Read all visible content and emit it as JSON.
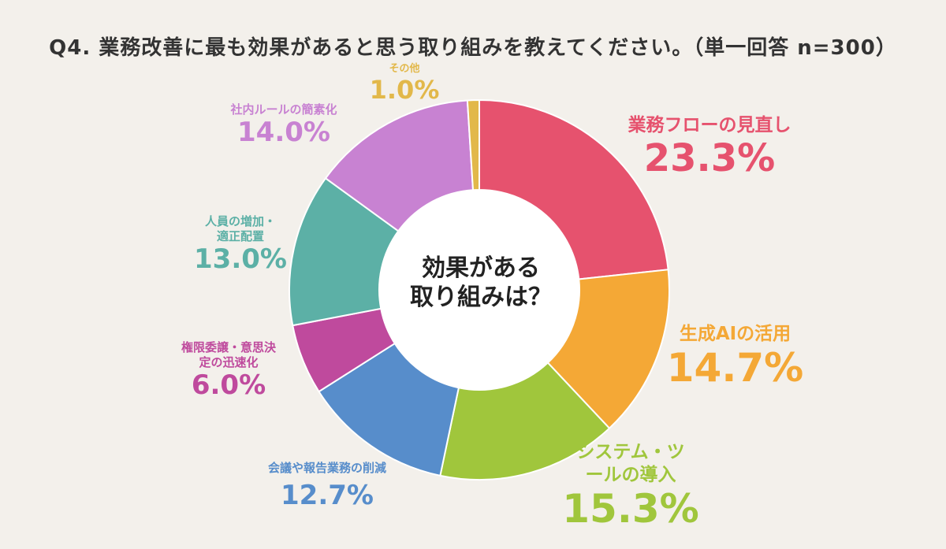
{
  "title": "Q4. 業務改善に最も効果があると思う取り組みを教えてください。（単一回答 n=300）",
  "center_label": [
    "効果がある",
    "取り組みは？"
  ],
  "chart_data": {
    "type": "donut",
    "unit": "%",
    "segments": [
      {
        "name": "業務フローの見直し",
        "value": 23.3,
        "label": "23.3%",
        "color": "#e6526e"
      },
      {
        "name": "生成AIの活用",
        "value": 14.7,
        "label": "14.7%",
        "color": "#f4a836"
      },
      {
        "name": "システム・ツールの導入",
        "value": 15.3,
        "label": "15.3%",
        "color": "#a0c63c"
      },
      {
        "name": "会議や報告業務の削減",
        "value": 12.7,
        "label": "12.7%",
        "color": "#578dcb"
      },
      {
        "name": "権限委譲・意思決定の迅速化",
        "value": 6.0,
        "label": "6.0%",
        "color": "#bf4a9d"
      },
      {
        "name": "人員の増加・適正配置",
        "value": 13.0,
        "label": "13.0%",
        "color": "#5cb0a6"
      },
      {
        "name": "社内ルールの簡素化",
        "value": 14.0,
        "label": "14.0%",
        "color": "#c882d2"
      },
      {
        "name": "その他",
        "value": 1.0,
        "label": "1.0%",
        "color": "#e2b84a"
      }
    ]
  }
}
